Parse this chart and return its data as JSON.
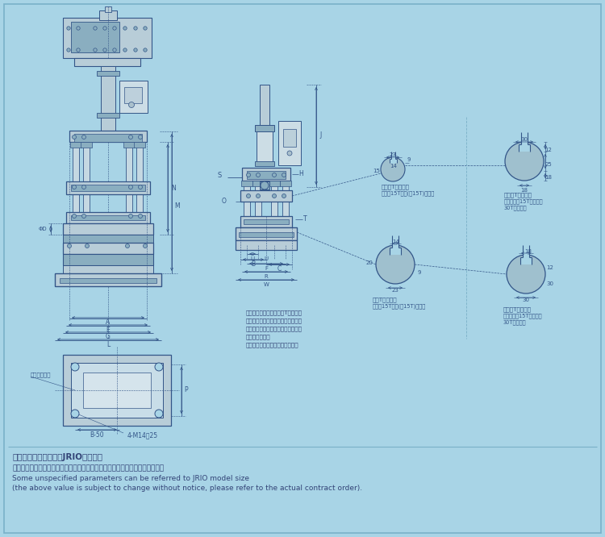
{
  "bg_color": "#a8d4e6",
  "line_color": "#5577aa",
  "dark_line": "#335588",
  "text_color": "#334477",
  "title_lines": [
    "部分未注明参数可参照JRIO型号尺寸",
    "（以上数值如因产品改进而变更恕不另行通知，请参照实际合同订单附图为准）"
  ],
  "subtitle_lines": [
    "Some unspecified parameters can be referred to JRIO model size",
    "(the above value is subject to change without notice, please refer to the actual contract order)."
  ],
  "note_text": [
    "注：上模固定方式可选择T型槽固定",
    "或者在移动板上面钻孔使用牙孔固定",
    "（牙孔固定时需要结合用户模具尺寸",
    "孔位来开孔）。",
    "具体情况视实际装配置要时而定："
  ],
  "slot_label_1": "移动板T型槽尺寸",
  "slot_sub_1": "（适用15T以下(含15T)机型）",
  "slot_label_2": "移动板T型槽尺寸",
  "slot_sub_2_1": "（适用大于15T小于等于",
  "slot_sub_2_2": "30T的机型）",
  "slot_label_3": "底板T型槽尺寸",
  "slot_sub_3": "（适用15T以下(含15T)机型）",
  "slot_label_4": "移动板T型槽尺寸",
  "slot_sub_4_1": "（适用大于15T小于等于",
  "slot_sub_4_2": "30T的机型）",
  "bottom_label": "底部安装孔位",
  "bolt_label": "4-M14深25",
  "b50_label": "B-50"
}
